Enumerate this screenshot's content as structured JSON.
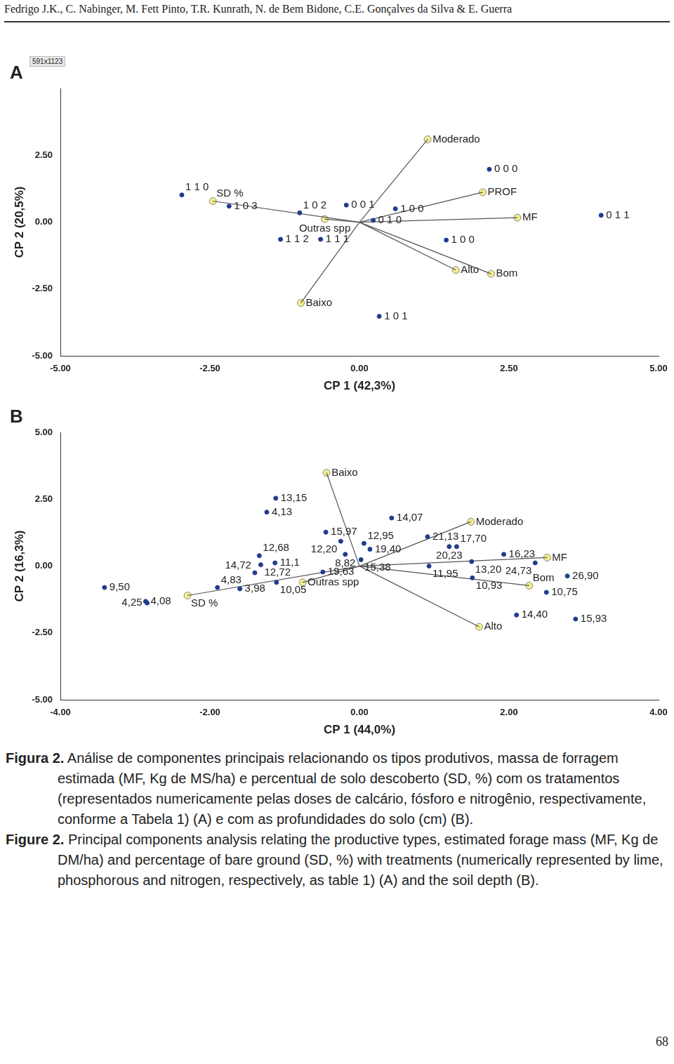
{
  "header": "Fedrigo J.K., C. Nabinger, M. Fett Pinto, T.R. Kunrath, N. de Bem Bidone, C.E. Gonçalves da Silva & E. Guerra",
  "badge": "591x1123",
  "chart_data": [
    {
      "type": "scatter",
      "title": "A",
      "x_label": "CP 1 (42,3%)",
      "y_label": "CP 2 (20,5%)",
      "xlim": [
        -5,
        5
      ],
      "ylim": [
        -5,
        5
      ],
      "xticks": [
        {
          "value": -5,
          "label": "-5.00"
        },
        {
          "value": -2.5,
          "label": "-2.50"
        },
        {
          "value": 0,
          "label": "0.00"
        },
        {
          "value": 2.5,
          "label": "2.50"
        },
        {
          "value": 5,
          "label": "5.00"
        }
      ],
      "yticks": [
        {
          "value": -5,
          "label": "-5.00"
        },
        {
          "value": -2.5,
          "label": "-2.50"
        },
        {
          "value": 0,
          "label": "0.00"
        },
        {
          "value": 2.5,
          "label": "2.50"
        }
      ],
      "grid": false,
      "series": [
        {
          "type": "scatter",
          "color": "#1f3d8c",
          "marker": "circle",
          "labels": [
            "1 1 0",
            "1 0 3",
            "1 0 2",
            "0 0 1",
            "0 1 0",
            "1 0 0",
            "1 1 2",
            "1 1 1",
            "1 0 0",
            "0 0 0",
            "0 1 1",
            "1 0 1"
          ],
          "x": [
            -2.97,
            -2.18,
            -1.0,
            -0.22,
            0.23,
            0.6,
            -1.32,
            -0.65,
            1.45,
            2.17,
            4.04,
            0.33
          ],
          "y": [
            1.02,
            0.6,
            0.35,
            0.64,
            0.07,
            0.5,
            -0.64,
            -0.64,
            -0.67,
            1.98,
            0.26,
            -3.52
          ]
        },
        {
          "type": "vector",
          "color": "#f2ee8c",
          "marker": "circle",
          "labels": [
            "Moderado",
            "PROF",
            "MF",
            "Bom",
            "Alto",
            "Baixo",
            "SD %",
            "Outras spp"
          ],
          "x": [
            1.14,
            2.06,
            2.64,
            2.2,
            1.61,
            -0.98,
            -2.45,
            -0.58
          ],
          "y": [
            3.1,
            1.12,
            0.17,
            -1.93,
            -1.79,
            -3.02,
            0.79,
            0.12
          ]
        }
      ]
    },
    {
      "type": "scatter",
      "title": "B",
      "x_label": "CP 1 (44,0%)",
      "y_label": "CP 2 (16,3%)",
      "xlim": [
        -4,
        4
      ],
      "ylim": [
        -5,
        5
      ],
      "xticks": [
        {
          "value": -4,
          "label": "-4.00"
        },
        {
          "value": -2,
          "label": "-2.00"
        },
        {
          "value": 0,
          "label": "0.00"
        },
        {
          "value": 2,
          "label": "2.00"
        },
        {
          "value": 4,
          "label": "4.00"
        }
      ],
      "yticks": [
        {
          "value": -5,
          "label": "-5.00"
        },
        {
          "value": -2.5,
          "label": "-2.50"
        },
        {
          "value": 0,
          "label": "0.00"
        },
        {
          "value": 2.5,
          "label": "2.50"
        },
        {
          "value": 5,
          "label": "5.00"
        }
      ],
      "grid": false,
      "series": [
        {
          "type": "scatter",
          "color": "#1f3d8c",
          "marker": "circle",
          "labels": [
            "9,50",
            "4,08",
            "4,25",
            "4,83",
            "3,98",
            "14,72",
            "12,72",
            "12,68",
            "11,1",
            "10,05",
            "13,15",
            "4,13",
            "15,97",
            "12,20",
            "8,82",
            "12,95",
            "19,40",
            "15,38",
            "19,63",
            "14,07",
            "21,13",
            "20,23",
            "17,70",
            "11,95",
            "13,20",
            "10,93",
            "16,23",
            "24,73",
            "26,90",
            "10,75",
            "14,40",
            "15,93"
          ],
          "x": [
            -3.41,
            -2.86,
            -2.84,
            -1.9,
            -1.6,
            -1.4,
            -1.32,
            -1.34,
            -1.13,
            -1.11,
            -1.12,
            -1.24,
            -0.45,
            -0.25,
            -0.19,
            0.06,
            0.14,
            0.02,
            -0.49,
            0.43,
            0.91,
            1.2,
            1.3,
            0.93,
            1.5,
            1.51,
            1.93,
            2.35,
            2.78,
            2.5,
            2.1,
            2.89
          ],
          "y": [
            -0.8,
            -1.32,
            -1.38,
            -0.8,
            -0.85,
            -0.25,
            0.05,
            0.39,
            0.12,
            -0.61,
            2.54,
            2.02,
            1.27,
            0.93,
            0.44,
            0.85,
            0.63,
            0.24,
            -0.22,
            1.8,
            1.1,
            0.73,
            0.73,
            0.0,
            0.17,
            -0.44,
            0.44,
            0.12,
            -0.37,
            -0.98,
            -1.83,
            -1.98
          ]
        },
        {
          "type": "vector",
          "color": "#f2ee8c",
          "marker": "circle",
          "labels": [
            "Baixo",
            "Moderado",
            "MF",
            "Bom",
            "Alto",
            "SD %",
            "Outras spp"
          ],
          "x": [
            -0.44,
            1.49,
            2.51,
            2.27,
            1.6,
            -2.3,
            -0.76
          ],
          "y": [
            3.49,
            1.66,
            0.32,
            -0.73,
            -2.27,
            -1.1,
            -0.61
          ]
        }
      ]
    }
  ],
  "caption": [
    {
      "label": "Figura 2.",
      "text": "Análise de componentes principais relacionando os tipos produtivos, massa de forragem estimada (MF, Kg de MS/ha) e percentual de solo descoberto (SD, %) com os tratamentos (representados numericamente pelas doses de calcário, fósforo e nitrogênio, respectivamente, conforme a Tabela 1) (A) e com as profundidades do solo (cm) (B)."
    },
    {
      "label": "Figure 2.",
      "text": "Principal components analysis relating the productive types, estimated forage mass (MF, Kg de DM/ha) and percentage of bare ground (SD, %) with treatments (numerically represented by lime, phosphorous and nitrogen, respectively, as table 1) (A) and the soil depth (B)."
    }
  ],
  "page_number": "68"
}
